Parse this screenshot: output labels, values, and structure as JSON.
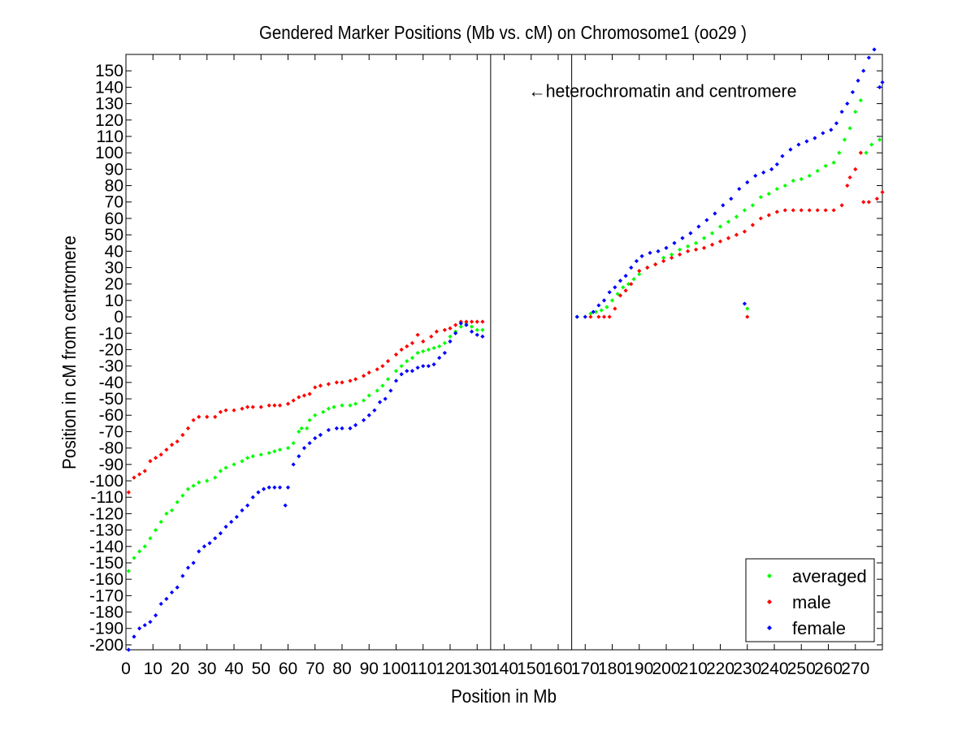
{
  "chart_data": {
    "type": "scatter",
    "title": "Gendered Marker Positions (Mb vs. cM) on Chromosome1 (oo29 )",
    "xlabel": "Position in Mb",
    "ylabel": "Position in cM from centromere",
    "xlim": [
      0,
      280
    ],
    "ylim": [
      -203,
      160
    ],
    "xticks": [
      0,
      10,
      20,
      30,
      40,
      50,
      60,
      70,
      80,
      90,
      100,
      110,
      120,
      130,
      140,
      150,
      160,
      170,
      180,
      190,
      200,
      210,
      220,
      230,
      240,
      250,
      260,
      270
    ],
    "yticks": [
      -200,
      -190,
      -180,
      -170,
      -160,
      -150,
      -140,
      -130,
      -120,
      -110,
      -100,
      -90,
      -80,
      -70,
      -60,
      -50,
      -40,
      -30,
      -20,
      -10,
      0,
      10,
      20,
      30,
      40,
      50,
      60,
      70,
      80,
      90,
      100,
      110,
      120,
      130,
      140,
      150
    ],
    "grid": false,
    "legend_position": "bottom-right",
    "annotation": {
      "text": "←heterochromatin and centromere",
      "x": 149,
      "y": 138
    },
    "vertical_lines": [
      135,
      165
    ],
    "series": [
      {
        "name": "averaged",
        "color": "#00ff00",
        "points": [
          [
            1,
            -155
          ],
          [
            3,
            -147
          ],
          [
            5,
            -143
          ],
          [
            7,
            -140
          ],
          [
            9,
            -135
          ],
          [
            11,
            -130
          ],
          [
            13,
            -125
          ],
          [
            15,
            -120
          ],
          [
            17,
            -118
          ],
          [
            19,
            -113
          ],
          [
            21,
            -109
          ],
          [
            23,
            -105
          ],
          [
            25,
            -103
          ],
          [
            27,
            -101
          ],
          [
            30,
            -100
          ],
          [
            33,
            -98
          ],
          [
            35,
            -94
          ],
          [
            37,
            -92
          ],
          [
            40,
            -90
          ],
          [
            43,
            -88
          ],
          [
            45,
            -86
          ],
          [
            47,
            -85
          ],
          [
            50,
            -84
          ],
          [
            53,
            -83
          ],
          [
            55,
            -82
          ],
          [
            57,
            -81
          ],
          [
            60,
            -80
          ],
          [
            62,
            -77
          ],
          [
            64,
            -70
          ],
          [
            65,
            -68
          ],
          [
            67,
            -68
          ],
          [
            68,
            -63
          ],
          [
            70,
            -60
          ],
          [
            73,
            -58
          ],
          [
            75,
            -56
          ],
          [
            77,
            -55
          ],
          [
            80,
            -54
          ],
          [
            83,
            -54
          ],
          [
            85,
            -53
          ],
          [
            88,
            -51
          ],
          [
            90,
            -48
          ],
          [
            93,
            -45
          ],
          [
            95,
            -42
          ],
          [
            97,
            -38
          ],
          [
            100,
            -33
          ],
          [
            102,
            -30
          ],
          [
            104,
            -27
          ],
          [
            106,
            -25
          ],
          [
            108,
            -22
          ],
          [
            110,
            -21
          ],
          [
            112,
            -20
          ],
          [
            114,
            -19
          ],
          [
            116,
            -18
          ],
          [
            118,
            -16
          ],
          [
            120,
            -12
          ],
          [
            122,
            -9
          ],
          [
            124,
            -6
          ],
          [
            126,
            -4
          ],
          [
            128,
            -6
          ],
          [
            130,
            -8
          ],
          [
            132,
            -8
          ],
          [
            167,
            0
          ],
          [
            172,
            2
          ],
          [
            174,
            3
          ],
          [
            176,
            4
          ],
          [
            178,
            6
          ],
          [
            180,
            10
          ],
          [
            182,
            14
          ],
          [
            184,
            18
          ],
          [
            186,
            20
          ],
          [
            188,
            23
          ],
          [
            190,
            26
          ],
          [
            193,
            30
          ],
          [
            196,
            32
          ],
          [
            199,
            36
          ],
          [
            202,
            38
          ],
          [
            205,
            41
          ],
          [
            208,
            43
          ],
          [
            211,
            45
          ],
          [
            214,
            48
          ],
          [
            217,
            51
          ],
          [
            220,
            55
          ],
          [
            223,
            58
          ],
          [
            226,
            61
          ],
          [
            229,
            65
          ],
          [
            230,
            5
          ],
          [
            232,
            68
          ],
          [
            235,
            73
          ],
          [
            238,
            75
          ],
          [
            241,
            78
          ],
          [
            244,
            80
          ],
          [
            247,
            83
          ],
          [
            250,
            84
          ],
          [
            253,
            86
          ],
          [
            256,
            89
          ],
          [
            259,
            92
          ],
          [
            262,
            94
          ],
          [
            264,
            100
          ],
          [
            266,
            108
          ],
          [
            268,
            115
          ],
          [
            270,
            125
          ],
          [
            272,
            132
          ],
          [
            274,
            100
          ],
          [
            276,
            105
          ],
          [
            279,
            108
          ]
        ]
      },
      {
        "name": "male",
        "color": "#ff0000",
        "points": [
          [
            1,
            -107
          ],
          [
            3,
            -98
          ],
          [
            5,
            -96
          ],
          [
            7,
            -94
          ],
          [
            9,
            -88
          ],
          [
            11,
            -86
          ],
          [
            13,
            -84
          ],
          [
            15,
            -81
          ],
          [
            17,
            -78
          ],
          [
            19,
            -76
          ],
          [
            21,
            -72
          ],
          [
            23,
            -68
          ],
          [
            25,
            -63
          ],
          [
            27,
            -61
          ],
          [
            30,
            -61
          ],
          [
            33,
            -61
          ],
          [
            35,
            -58
          ],
          [
            37,
            -57
          ],
          [
            40,
            -57
          ],
          [
            43,
            -56
          ],
          [
            45,
            -55
          ],
          [
            47,
            -55
          ],
          [
            50,
            -55
          ],
          [
            53,
            -54
          ],
          [
            55,
            -54
          ],
          [
            57,
            -54
          ],
          [
            60,
            -53
          ],
          [
            62,
            -51
          ],
          [
            64,
            -49
          ],
          [
            66,
            -48
          ],
          [
            68,
            -47
          ],
          [
            70,
            -43
          ],
          [
            72,
            -42
          ],
          [
            75,
            -41
          ],
          [
            78,
            -40
          ],
          [
            80,
            -40
          ],
          [
            83,
            -39
          ],
          [
            85,
            -38
          ],
          [
            88,
            -36
          ],
          [
            90,
            -34
          ],
          [
            93,
            -32
          ],
          [
            95,
            -30
          ],
          [
            97,
            -27
          ],
          [
            100,
            -23
          ],
          [
            102,
            -20
          ],
          [
            104,
            -18
          ],
          [
            106,
            -16
          ],
          [
            108,
            -11
          ],
          [
            110,
            -15
          ],
          [
            113,
            -12
          ],
          [
            115,
            -9
          ],
          [
            118,
            -8
          ],
          [
            120,
            -7
          ],
          [
            122,
            -5
          ],
          [
            124,
            -3
          ],
          [
            126,
            -3
          ],
          [
            128,
            -3
          ],
          [
            130,
            -3
          ],
          [
            132,
            -3
          ],
          [
            172,
            0
          ],
          [
            175,
            0
          ],
          [
            177,
            0
          ],
          [
            179,
            0
          ],
          [
            181,
            5
          ],
          [
            183,
            13
          ],
          [
            185,
            16
          ],
          [
            187,
            20
          ],
          [
            190,
            28
          ],
          [
            193,
            30
          ],
          [
            196,
            32
          ],
          [
            199,
            34
          ],
          [
            202,
            36
          ],
          [
            205,
            38
          ],
          [
            208,
            40
          ],
          [
            211,
            41
          ],
          [
            214,
            42
          ],
          [
            217,
            44
          ],
          [
            220,
            46
          ],
          [
            223,
            48
          ],
          [
            226,
            50
          ],
          [
            229,
            52
          ],
          [
            230,
            0
          ],
          [
            232,
            56
          ],
          [
            235,
            60
          ],
          [
            238,
            62
          ],
          [
            241,
            64
          ],
          [
            244,
            65
          ],
          [
            247,
            65
          ],
          [
            250,
            65
          ],
          [
            253,
            65
          ],
          [
            256,
            65
          ],
          [
            259,
            65
          ],
          [
            262,
            65
          ],
          [
            265,
            68
          ],
          [
            267,
            80
          ],
          [
            268,
            85
          ],
          [
            270,
            90
          ],
          [
            272,
            100
          ],
          [
            273,
            70
          ],
          [
            275,
            70
          ],
          [
            278,
            72
          ],
          [
            280,
            76
          ]
        ]
      },
      {
        "name": "female",
        "color": "#0000ff",
        "points": [
          [
            1,
            -203
          ],
          [
            3,
            -195
          ],
          [
            5,
            -190
          ],
          [
            7,
            -188
          ],
          [
            9,
            -186
          ],
          [
            11,
            -182
          ],
          [
            13,
            -175
          ],
          [
            15,
            -172
          ],
          [
            17,
            -168
          ],
          [
            19,
            -165
          ],
          [
            21,
            -158
          ],
          [
            23,
            -153
          ],
          [
            25,
            -150
          ],
          [
            27,
            -143
          ],
          [
            29,
            -140
          ],
          [
            31,
            -138
          ],
          [
            33,
            -135
          ],
          [
            35,
            -132
          ],
          [
            37,
            -128
          ],
          [
            39,
            -125
          ],
          [
            41,
            -122
          ],
          [
            43,
            -118
          ],
          [
            45,
            -115
          ],
          [
            47,
            -110
          ],
          [
            49,
            -107
          ],
          [
            51,
            -105
          ],
          [
            53,
            -104
          ],
          [
            55,
            -104
          ],
          [
            57,
            -104
          ],
          [
            59,
            -115
          ],
          [
            60,
            -104
          ],
          [
            62,
            -90
          ],
          [
            64,
            -85
          ],
          [
            66,
            -80
          ],
          [
            68,
            -77
          ],
          [
            70,
            -74
          ],
          [
            72,
            -72
          ],
          [
            75,
            -69
          ],
          [
            78,
            -68
          ],
          [
            80,
            -68
          ],
          [
            83,
            -68
          ],
          [
            85,
            -66
          ],
          [
            88,
            -63
          ],
          [
            90,
            -60
          ],
          [
            92,
            -57
          ],
          [
            94,
            -52
          ],
          [
            96,
            -50
          ],
          [
            98,
            -45
          ],
          [
            100,
            -39
          ],
          [
            102,
            -35
          ],
          [
            104,
            -33
          ],
          [
            106,
            -33
          ],
          [
            108,
            -31
          ],
          [
            110,
            -30
          ],
          [
            112,
            -30
          ],
          [
            114,
            -29
          ],
          [
            116,
            -25
          ],
          [
            118,
            -22
          ],
          [
            120,
            -15
          ],
          [
            122,
            -10
          ],
          [
            124,
            -4
          ],
          [
            126,
            -5
          ],
          [
            128,
            -9
          ],
          [
            130,
            -11
          ],
          [
            132,
            -12
          ],
          [
            167,
            0
          ],
          [
            170,
            0
          ],
          [
            173,
            3
          ],
          [
            175,
            7
          ],
          [
            177,
            10
          ],
          [
            179,
            15
          ],
          [
            181,
            18
          ],
          [
            183,
            22
          ],
          [
            185,
            25
          ],
          [
            187,
            30
          ],
          [
            189,
            34
          ],
          [
            191,
            37
          ],
          [
            194,
            39
          ],
          [
            197,
            40
          ],
          [
            200,
            42
          ],
          [
            203,
            45
          ],
          [
            206,
            48
          ],
          [
            209,
            51
          ],
          [
            212,
            55
          ],
          [
            215,
            59
          ],
          [
            218,
            63
          ],
          [
            221,
            68
          ],
          [
            224,
            72
          ],
          [
            227,
            78
          ],
          [
            229,
            8
          ],
          [
            230,
            82
          ],
          [
            233,
            86
          ],
          [
            236,
            88
          ],
          [
            239,
            90
          ],
          [
            241,
            93
          ],
          [
            243,
            98
          ],
          [
            246,
            102
          ],
          [
            249,
            105
          ],
          [
            252,
            107
          ],
          [
            255,
            109
          ],
          [
            258,
            112
          ],
          [
            261,
            114
          ],
          [
            263,
            118
          ],
          [
            265,
            125
          ],
          [
            267,
            130
          ],
          [
            269,
            137
          ],
          [
            271,
            144
          ],
          [
            273,
            150
          ],
          [
            275,
            158
          ],
          [
            277,
            163
          ],
          [
            279,
            140
          ],
          [
            280,
            143
          ]
        ]
      }
    ]
  }
}
